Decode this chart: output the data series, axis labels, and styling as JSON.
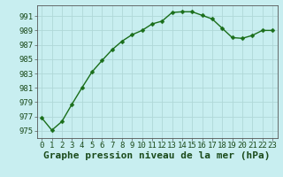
{
  "x": [
    0,
    1,
    2,
    3,
    4,
    5,
    6,
    7,
    8,
    9,
    10,
    11,
    12,
    13,
    14,
    15,
    16,
    17,
    18,
    19,
    20,
    21,
    22,
    23
  ],
  "y": [
    976.8,
    975.1,
    976.3,
    978.7,
    981.0,
    983.2,
    984.8,
    986.3,
    987.5,
    988.4,
    989.0,
    989.9,
    990.3,
    991.5,
    991.6,
    991.6,
    991.1,
    990.6,
    989.3,
    988.0,
    987.9,
    988.3,
    989.0,
    989.0
  ],
  "line_color": "#1a6e1a",
  "marker": "D",
  "marker_size": 2.5,
  "bg_color": "#c8eef0",
  "plot_bg_color": "#c8eef0",
  "grid_color": "#b0d8d8",
  "xlabel": "Graphe pression niveau de la mer (hPa)",
  "xlabel_fontsize": 8,
  "ylabel_ticks": [
    975,
    977,
    979,
    981,
    983,
    985,
    987,
    989,
    991
  ],
  "xlim": [
    -0.5,
    23.5
  ],
  "ylim": [
    974.0,
    992.5
  ],
  "xtick_labels": [
    "0",
    "1",
    "2",
    "3",
    "4",
    "5",
    "6",
    "7",
    "8",
    "9",
    "10",
    "11",
    "12",
    "13",
    "14",
    "15",
    "16",
    "17",
    "18",
    "19",
    "20",
    "21",
    "22",
    "23"
  ],
  "tick_fontsize": 6.5,
  "spine_color": "#555555",
  "line_width": 1.0,
  "label_color": "#1a4a1a"
}
